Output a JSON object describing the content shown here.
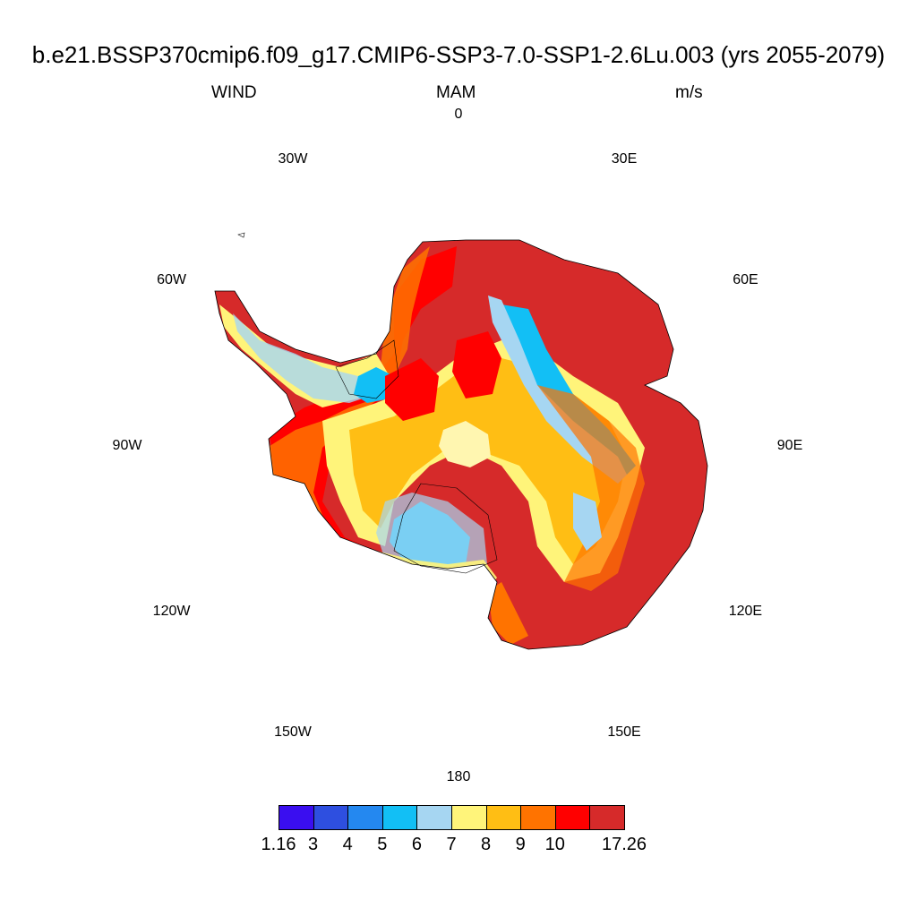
{
  "title": "b.e21.BSSP370cmip6.f09_g17.CMIP6-SSP3-7.0-SSP1-2.6Lu.003 (yrs 2055-2079)",
  "variable": "WIND",
  "season": "MAM",
  "units": "m/s",
  "longitude_labels": [
    "0",
    "30E",
    "60E",
    "90E",
    "120E",
    "150E",
    "180",
    "150W",
    "120W",
    "90W",
    "60W",
    "30W"
  ],
  "colorbar": {
    "colors": [
      "#3a0ef0",
      "#2e4fe0",
      "#2488f0",
      "#12bff5",
      "#a6d6f2",
      "#fff47a",
      "#ffbe14",
      "#ff7300",
      "#ff0000",
      "#d62a2a"
    ],
    "labels": [
      "1.16",
      "3",
      "4",
      "5",
      "6",
      "7",
      "8",
      "9",
      "10",
      "17.26"
    ]
  },
  "map_data": {
    "projection": "south-polar-stereographic",
    "region": "Antarctica",
    "field": "WIND"
  }
}
